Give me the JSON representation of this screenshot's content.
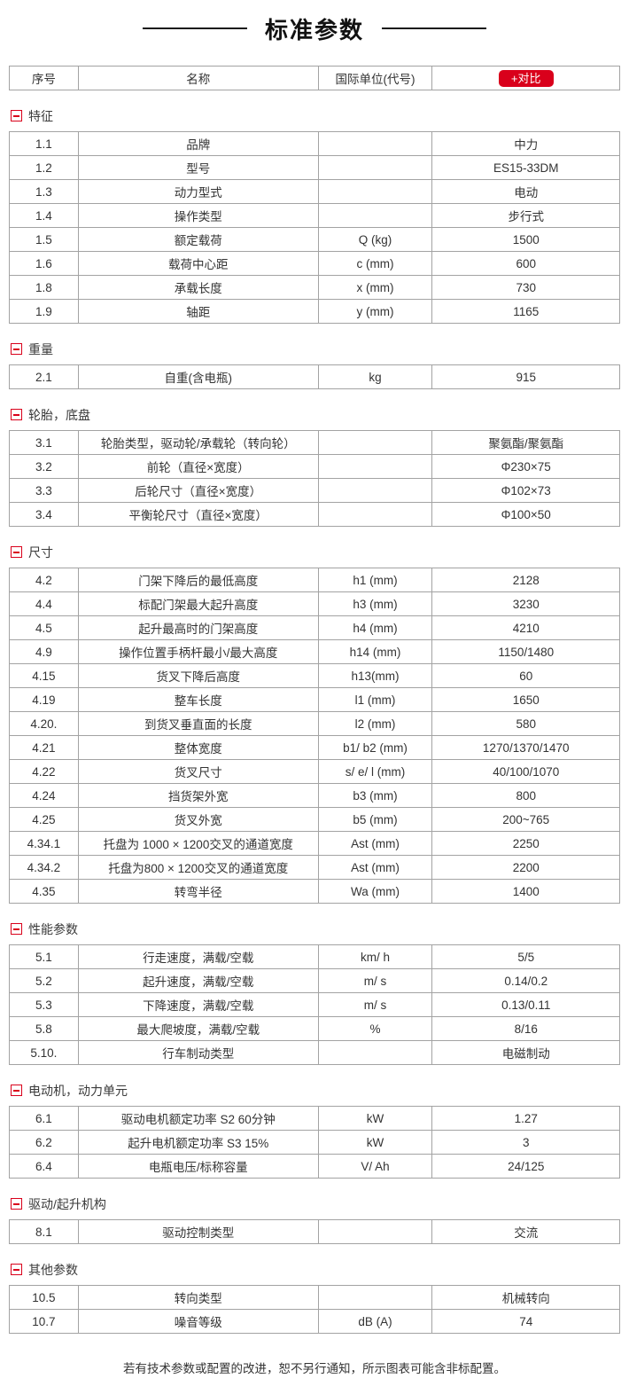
{
  "page": {
    "title": "标准参数",
    "footer": "若有技术参数或配置的改进，恕不另行通知，所示图表可能含非标配置。"
  },
  "colors": {
    "accent_red": "#d9001b",
    "table_border": "#a3a3a3",
    "text": "#333333",
    "title_line": "#1a1a1a"
  },
  "header": {
    "col_no": "序号",
    "col_name": "名称",
    "col_unit": "国际单位(代号)",
    "compare_button": "+对比"
  },
  "icons": {
    "collapse": "minus-square-icon"
  },
  "sections": [
    {
      "title": "特征",
      "rows": [
        [
          "1.1",
          "品牌",
          "",
          "中力"
        ],
        [
          "1.2",
          "型号",
          "",
          "ES15-33DM"
        ],
        [
          "1.3",
          "动力型式",
          "",
          "电动"
        ],
        [
          "1.4",
          "操作类型",
          "",
          "步行式"
        ],
        [
          "1.5",
          "额定载荷",
          "Q (kg)",
          "1500"
        ],
        [
          "1.6",
          "载荷中心距",
          "c (mm)",
          "600"
        ],
        [
          "1.8",
          "承载长度",
          "x (mm)",
          "730"
        ],
        [
          "1.9",
          "轴距",
          "y (mm)",
          "1165"
        ]
      ]
    },
    {
      "title": "重量",
      "rows": [
        [
          "2.1",
          "自重(含电瓶)",
          "kg",
          "915"
        ]
      ]
    },
    {
      "title": "轮胎，底盘",
      "rows": [
        [
          "3.1",
          "轮胎类型，驱动轮/承载轮（转向轮）",
          "",
          "聚氨酯/聚氨酯"
        ],
        [
          "3.2",
          "前轮（直径×宽度）",
          "",
          "Φ230×75"
        ],
        [
          "3.3",
          "后轮尺寸（直径×宽度）",
          "",
          "Φ102×73"
        ],
        [
          "3.4",
          "平衡轮尺寸（直径×宽度）",
          "",
          "Φ100×50"
        ]
      ]
    },
    {
      "title": "尺寸",
      "rows": [
        [
          "4.2",
          "门架下降后的最低高度",
          "h1 (mm)",
          "2128"
        ],
        [
          "4.4",
          "标配门架最大起升高度",
          "h3 (mm)",
          "3230"
        ],
        [
          "4.5",
          "起升最高时的门架高度",
          "h4 (mm)",
          "4210"
        ],
        [
          "4.9",
          "操作位置手柄杆最小/最大高度",
          "h14 (mm)",
          "1150/1480"
        ],
        [
          "4.15",
          "货叉下降后高度",
          "h13(mm)",
          "60"
        ],
        [
          "4.19",
          "整车长度",
          "l1 (mm)",
          "1650"
        ],
        [
          "4.20.",
          "到货叉垂直面的长度",
          "l2 (mm)",
          "580"
        ],
        [
          "4.21",
          "整体宽度",
          "b1/ b2 (mm)",
          "1270/1370/1470"
        ],
        [
          "4.22",
          "货叉尺寸",
          "s/ e/ l (mm)",
          "40/100/1070"
        ],
        [
          "4.24",
          "挡货架外宽",
          "b3 (mm)",
          "800"
        ],
        [
          "4.25",
          "货叉外宽",
          "b5 (mm)",
          "200~765"
        ],
        [
          "4.34.1",
          "托盘为 1000 × 1200交叉的通道宽度",
          "Ast (mm)",
          "2250"
        ],
        [
          "4.34.2",
          "托盘为800 × 1200交叉的通道宽度",
          "Ast (mm)",
          "2200"
        ],
        [
          "4.35",
          "转弯半径",
          "Wa (mm)",
          "1400"
        ]
      ]
    },
    {
      "title": "性能参数",
      "rows": [
        [
          "5.1",
          "行走速度，满载/空载",
          "km/ h",
          "5/5"
        ],
        [
          "5.2",
          "起升速度，满载/空载",
          "m/ s",
          "0.14/0.2"
        ],
        [
          "5.3",
          "下降速度，满载/空载",
          "m/ s",
          "0.13/0.11"
        ],
        [
          "5.8",
          "最大爬坡度，满载/空载",
          "%",
          "8/16"
        ],
        [
          "5.10.",
          "行车制动类型",
          "",
          "电磁制动"
        ]
      ]
    },
    {
      "title": "电动机，动力单元",
      "rows": [
        [
          "6.1",
          "驱动电机额定功率 S2 60分钟",
          "kW",
          "1.27"
        ],
        [
          "6.2",
          "起升电机额定功率 S3 15%",
          "kW",
          "3"
        ],
        [
          "6.4",
          "电瓶电压/标称容量",
          "V/ Ah",
          "24/125"
        ]
      ]
    },
    {
      "title": "驱动/起升机构",
      "rows": [
        [
          "8.1",
          "驱动控制类型",
          "",
          "交流"
        ]
      ]
    },
    {
      "title": "其他参数",
      "rows": [
        [
          "10.5",
          "转向类型",
          "",
          "机械转向"
        ],
        [
          "10.7",
          "噪音等级",
          "dB (A)",
          "74"
        ]
      ]
    }
  ]
}
